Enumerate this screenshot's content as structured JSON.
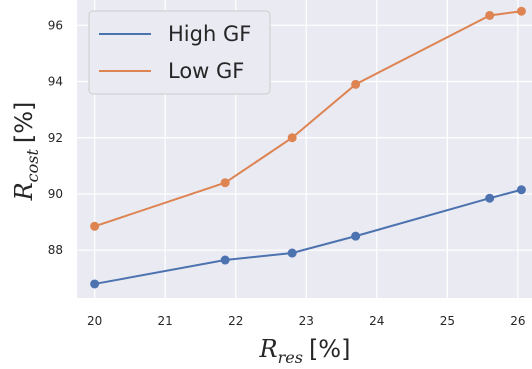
{
  "chart_data": {
    "type": "line",
    "x": [
      20,
      21.85,
      22.8,
      23.7,
      25.6,
      26.05
    ],
    "series": [
      {
        "name": "High GF",
        "color": "#4c72b0",
        "values": [
          86.8,
          87.65,
          87.9,
          88.5,
          89.85,
          90.15
        ]
      },
      {
        "name": "Low GF",
        "color": "#dd8452",
        "values": [
          88.85,
          90.4,
          92.0,
          93.9,
          96.35,
          96.5
        ]
      }
    ],
    "xticks": [
      "20",
      "21",
      "22",
      "23",
      "24",
      "25",
      "26"
    ],
    "yticks": [
      "88",
      "90",
      "92",
      "94",
      "96"
    ],
    "xlabel": {
      "main": "R",
      "sub": "res",
      "unit": "[%]"
    },
    "ylabel": {
      "main": "R",
      "sub": "cost",
      "unit": "[%]"
    },
    "xlim": [
      19.75,
      26.2
    ],
    "ylim": [
      86.3,
      96.9
    ],
    "grid": true,
    "legend": "top-left",
    "background": "#eaeaf2"
  }
}
